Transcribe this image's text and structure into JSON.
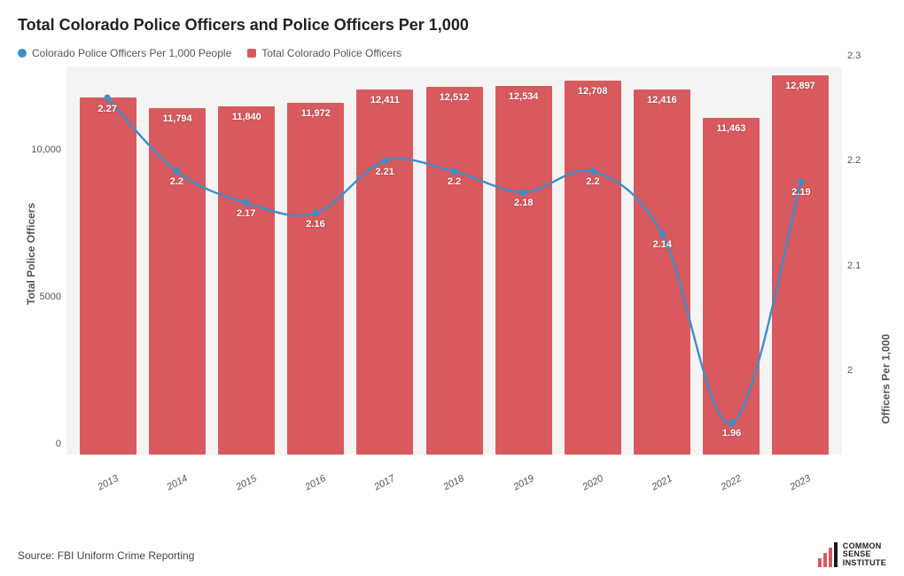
{
  "title": "Total Colorado Police Officers and Police Officers Per 1,000",
  "legend": {
    "line": {
      "label": "Colorado Police Officers Per 1,000 People",
      "color": "#3b8fc9"
    },
    "bar": {
      "label": "Total Colorado Police Officers",
      "color": "#d85a5e"
    }
  },
  "chart": {
    "type": "bar+line",
    "plot_bg": "#f4f4f4",
    "years": [
      "2013",
      "2014",
      "2015",
      "2016",
      "2017",
      "2018",
      "2019",
      "2020",
      "2021",
      "2022",
      "2023"
    ],
    "bars": {
      "values": [
        12150,
        11794,
        11840,
        11972,
        12411,
        12512,
        12534,
        12708,
        12416,
        11463,
        12897
      ],
      "labels": [
        "",
        "11,794",
        "11,840",
        "11,972",
        "12,411",
        "12,512",
        "12,534",
        "12,708",
        "12,416",
        "11,463",
        "12,897"
      ],
      "color": "#d85a5e",
      "y_left": {
        "min": 0,
        "max": 13200,
        "ticks": [
          0,
          5000,
          10000
        ],
        "tick_labels": [
          "0",
          "5000",
          "10,000"
        ],
        "label": "Total Police Officers"
      }
    },
    "line": {
      "values": [
        2.27,
        2.2,
        2.17,
        2.16,
        2.21,
        2.2,
        2.18,
        2.2,
        2.14,
        1.96,
        2.19
      ],
      "labels": [
        "2.27",
        "2.2",
        "2.17",
        "2.16",
        "2.21",
        "2.2",
        "2.18",
        "2.2",
        "2.14",
        "1.96",
        "2.19"
      ],
      "color": "#3b8fc9",
      "marker_fill": "#3b8fc9",
      "line_width": 2.4,
      "marker_radius": 4,
      "y_right": {
        "min": 1.93,
        "max": 2.3,
        "ticks": [
          2.0,
          2.1,
          2.2,
          2.3
        ],
        "tick_labels": [
          "2",
          "2.1",
          "2.2",
          "2.3"
        ],
        "label": "Officers Per 1,000"
      }
    },
    "label_fontsize": 11,
    "tick_fontsize": 11,
    "title_fontsize": 18
  },
  "source": "Source: FBI Uniform Crime Reporting",
  "logo": {
    "bars": [
      {
        "h": 10,
        "c": "#d85a5e"
      },
      {
        "h": 16,
        "c": "#d85a5e"
      },
      {
        "h": 22,
        "c": "#d85a5e"
      },
      {
        "h": 28,
        "c": "#1a1a1a"
      }
    ],
    "line1": "COMMON",
    "line2": "SENSE",
    "line3": "INSTITUTE"
  }
}
